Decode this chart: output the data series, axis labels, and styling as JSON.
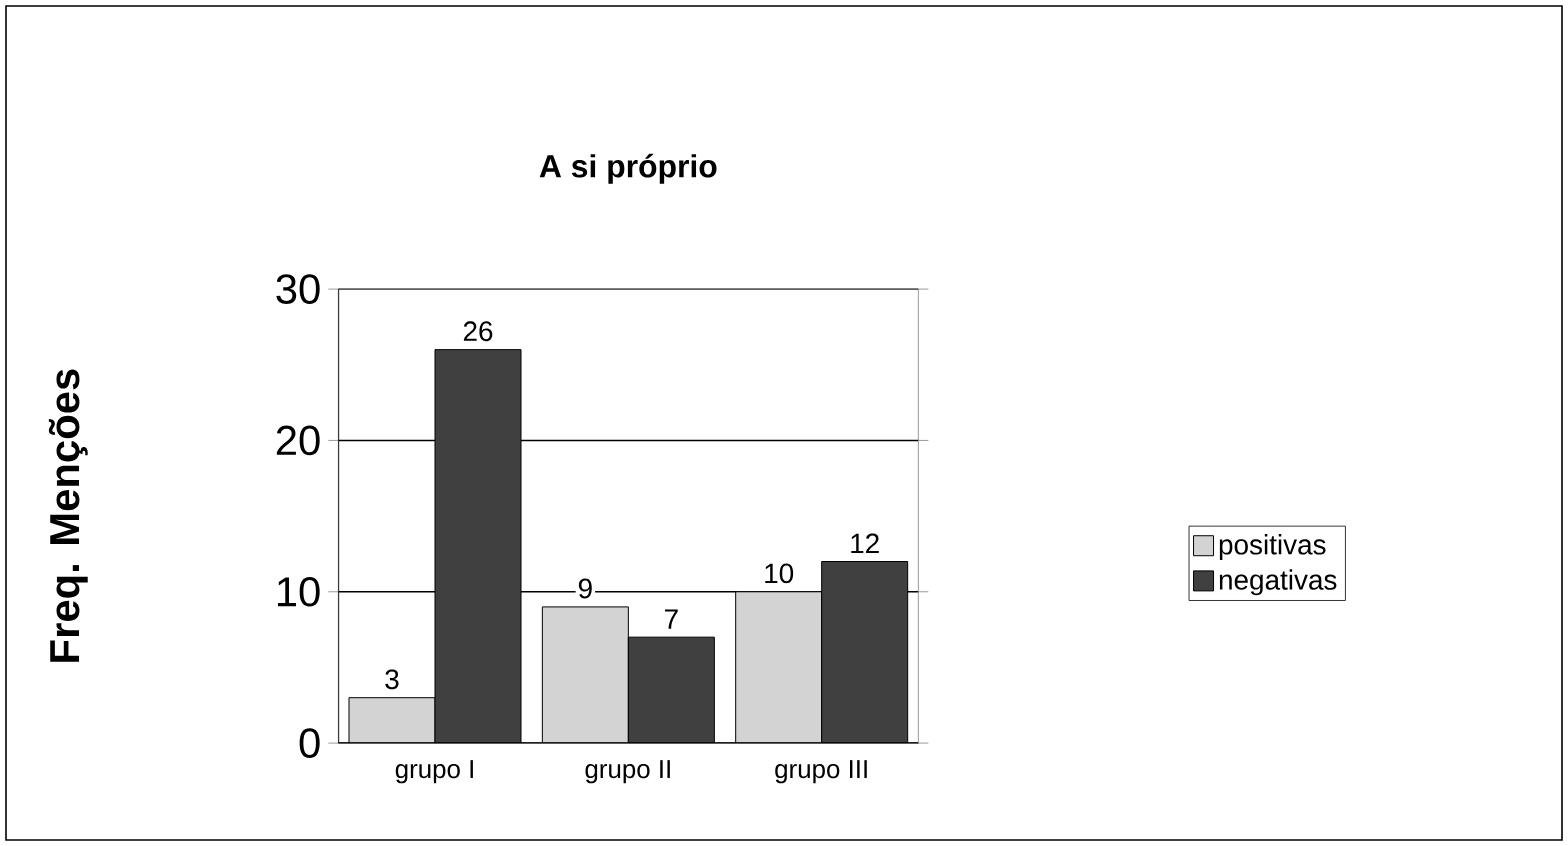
{
  "chart_data": {
    "type": "bar",
    "title": "A si próprio",
    "ylabel": "Freq. Menções",
    "categories": [
      "grupo I",
      "grupo II",
      "grupo III"
    ],
    "series": [
      {
        "name": "positivas",
        "color": "#d3d3d3",
        "values": [
          3,
          9,
          10
        ]
      },
      {
        "name": "negativas",
        "color": "#404040",
        "values": [
          26,
          7,
          12
        ]
      }
    ],
    "ylim": [
      0,
      30
    ],
    "yticks": [
      0,
      10,
      20,
      30
    ],
    "grid": "y",
    "legend": "right",
    "data_labels": true
  }
}
